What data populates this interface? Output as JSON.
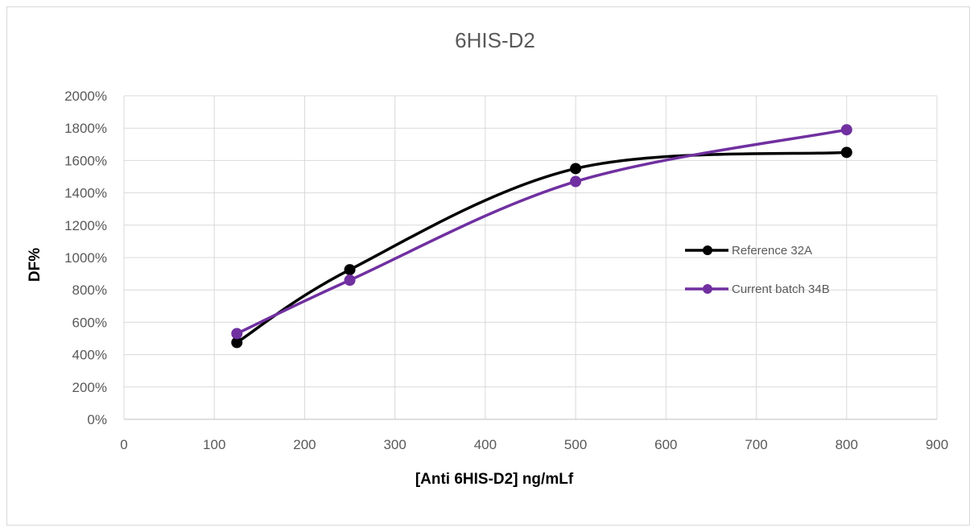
{
  "chart_data": {
    "type": "line",
    "title": "6HIS-D2",
    "xlabel": "[Anti 6HIS-D2] ng/mLf",
    "ylabel": "DF%",
    "xlim": [
      0,
      900
    ],
    "ylim": [
      0,
      2000
    ],
    "x_ticks": [
      0,
      100,
      200,
      300,
      400,
      500,
      600,
      700,
      800,
      900
    ],
    "y_ticks": [
      0,
      200,
      400,
      600,
      800,
      1000,
      1200,
      1400,
      1600,
      1800,
      2000
    ],
    "y_tick_labels": [
      "0%",
      "200%",
      "400%",
      "600%",
      "800%",
      "1000%",
      "1200%",
      "1400%",
      "1600%",
      "1800%",
      "2000%"
    ],
    "grid": true,
    "smooth": true,
    "legend_position": "right",
    "series": [
      {
        "name": "Reference 32A",
        "color": "#000000",
        "x": [
          125,
          250,
          500,
          800
        ],
        "y": [
          475,
          925,
          1550,
          1650
        ]
      },
      {
        "name": "Current batch 34B",
        "color": "#7030a0",
        "x": [
          125,
          250,
          500,
          800
        ],
        "y": [
          530,
          860,
          1470,
          1790
        ]
      }
    ]
  }
}
